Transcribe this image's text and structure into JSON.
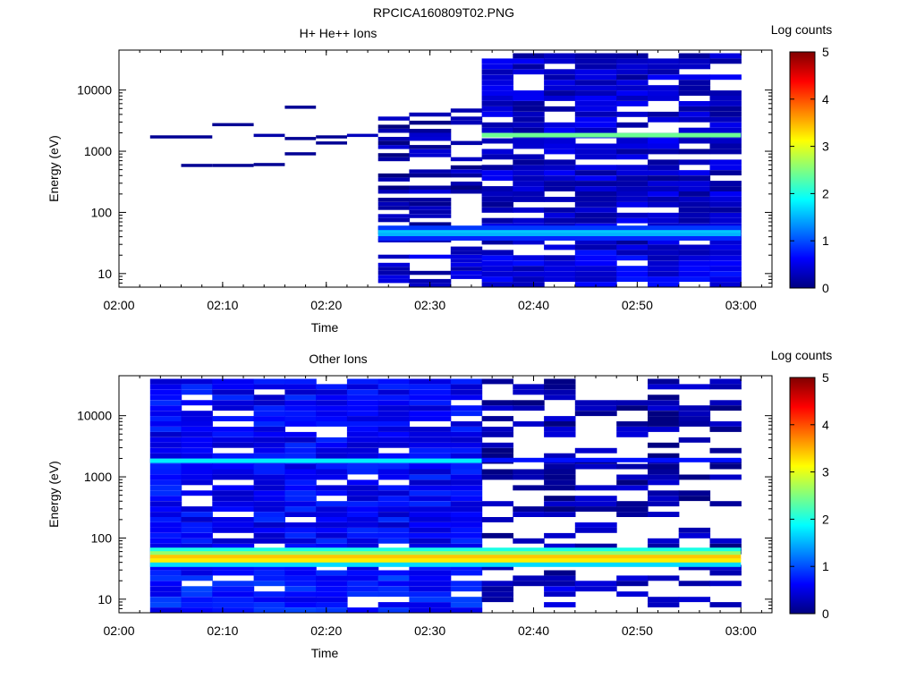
{
  "figure": {
    "title": "RPCICA160809T02.PNG",
    "colormap": [
      "#000080",
      "#0000ff",
      "#0080ff",
      "#00ffff",
      "#80ff80",
      "#ffff00",
      "#ff8000",
      "#ff0000",
      "#800000"
    ]
  },
  "chart_data": [
    {
      "type": "heatmap",
      "title": "H+ He++ Ions",
      "xlabel": "Time",
      "ylabel": "Energy (eV)",
      "x_ticks": [
        "02:00",
        "02:10",
        "02:20",
        "02:30",
        "02:40",
        "02:50",
        "03:00"
      ],
      "x_range": [
        "02:00",
        "03:03"
      ],
      "y_ticks": [
        "10",
        "100",
        "1000",
        "10000"
      ],
      "y_scale": "log",
      "y_range": [
        6,
        45000
      ],
      "colorbar": {
        "label": "Log counts",
        "ticks": [
          "0",
          "1",
          "2",
          "3",
          "4",
          "5"
        ],
        "range": [
          0,
          5
        ]
      },
      "columns": [
        "02:03",
        "02:06",
        "02:09",
        "02:13",
        "02:16",
        "02:19",
        "02:22",
        "02:25",
        "02:28",
        "02:32",
        "02:35",
        "02:38",
        "02:41",
        "02:44",
        "02:48",
        "02:51",
        "02:54",
        "02:57",
        "03:00"
      ],
      "cells": [
        {
          "t0": "02:03",
          "t1": "02:06",
          "e": 1700,
          "v": 0.1
        },
        {
          "t0": "02:06",
          "t1": "02:09",
          "e": 1700,
          "v": 0.1
        },
        {
          "t0": "02:06",
          "t1": "02:09",
          "e": 580,
          "v": 0.1
        },
        {
          "t0": "02:09",
          "t1": "02:13",
          "e": 580,
          "v": 0.1
        },
        {
          "t0": "02:09",
          "t1": "02:13",
          "e": 2700,
          "v": 0.1
        },
        {
          "t0": "02:13",
          "t1": "02:16",
          "e": 1800,
          "v": 0.2
        },
        {
          "t0": "02:13",
          "t1": "02:16",
          "e": 600,
          "v": 0.1
        },
        {
          "t0": "02:16",
          "t1": "02:19",
          "e": 5200,
          "v": 0.1
        },
        {
          "t0": "02:16",
          "t1": "02:19",
          "e": 1600,
          "v": 0.1
        },
        {
          "t0": "02:16",
          "t1": "02:19",
          "e": 900,
          "v": 0.1
        },
        {
          "t0": "02:19",
          "t1": "02:22",
          "e": 1700,
          "v": 0.1
        },
        {
          "t0": "02:19",
          "t1": "02:22",
          "e": 1350,
          "v": 0.1
        },
        {
          "t0": "02:22",
          "t1": "02:25",
          "e": 1800,
          "v": 0.3
        }
      ],
      "active_blocks": [
        {
          "t0": "02:25",
          "t1": "02:35",
          "e_min": 6,
          "e_max": 5000,
          "background": 0.2,
          "fill": 0.55
        },
        {
          "t0": "02:35",
          "t1": "03:00",
          "e_min": 6,
          "e_max": 40000,
          "background": 0.35,
          "fill": 0.85
        }
      ],
      "bands": [
        {
          "e": 1800,
          "t0": "02:35",
          "t1": "03:00",
          "v": 2.4
        },
        {
          "e": 48,
          "t0": "02:25",
          "t1": "03:00",
          "v": 1.6
        },
        {
          "e": 42,
          "t0": "02:25",
          "t1": "03:00",
          "v": 1.5
        },
        {
          "e": 37,
          "t0": "02:25",
          "t1": "03:00",
          "v": 0.8
        },
        {
          "e": 55,
          "t0": "02:25",
          "t1": "03:00",
          "v": 0.9
        }
      ]
    },
    {
      "type": "heatmap",
      "title": "Other Ions",
      "xlabel": "Time",
      "ylabel": "Energy (eV)",
      "x_ticks": [
        "02:00",
        "02:10",
        "02:20",
        "02:30",
        "02:40",
        "02:50",
        "03:00"
      ],
      "x_range": [
        "02:00",
        "03:03"
      ],
      "y_ticks": [
        "10",
        "100",
        "1000",
        "10000"
      ],
      "y_scale": "log",
      "y_range": [
        6,
        45000
      ],
      "colorbar": {
        "label": "Log counts",
        "ticks": [
          "0",
          "1",
          "2",
          "3",
          "4",
          "5"
        ],
        "range": [
          0,
          5
        ]
      },
      "columns": [
        "02:03",
        "02:06",
        "02:09",
        "02:13",
        "02:16",
        "02:19",
        "02:22",
        "02:25",
        "02:28",
        "02:32",
        "02:35",
        "02:38",
        "02:41",
        "02:44",
        "02:48",
        "02:51",
        "02:54",
        "02:57",
        "03:00"
      ],
      "cells": [],
      "active_blocks": [
        {
          "t0": "02:03",
          "t1": "02:35",
          "e_min": 6,
          "e_max": 40000,
          "background": 0.6,
          "fill": 0.92
        },
        {
          "t0": "02:35",
          "t1": "03:00",
          "e_min": 6,
          "e_max": 40000,
          "background": 0.2,
          "fill": 0.45
        }
      ],
      "bands": [
        {
          "e": 1800,
          "t0": "02:03",
          "t1": "02:35",
          "v": 1.8
        },
        {
          "e": 1850,
          "t0": "02:35",
          "t1": "03:00",
          "v": 0.7
        },
        {
          "e": 63,
          "t0": "02:03",
          "t1": "03:00",
          "v": 2.0
        },
        {
          "e": 55,
          "t0": "02:03",
          "t1": "03:00",
          "v": 2.6
        },
        {
          "e": 48,
          "t0": "02:03",
          "t1": "03:00",
          "v": 3.4
        },
        {
          "e": 42,
          "t0": "02:03",
          "t1": "03:00",
          "v": 3.2
        },
        {
          "e": 36,
          "t0": "02:03",
          "t1": "03:00",
          "v": 1.7
        }
      ]
    }
  ]
}
